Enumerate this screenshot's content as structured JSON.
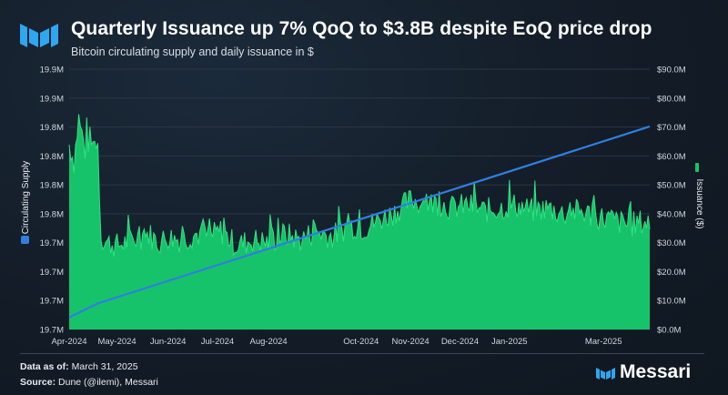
{
  "header": {
    "title": "Quarterly Issuance up 7% QoQ to $3.8B despite EoQ price drop",
    "subtitle": "Bitcoin circulating supply and daily issuance in $"
  },
  "footer": {
    "data_as_of_label": "Data as of:",
    "data_as_of_value": "March 31, 2025",
    "source_label": "Source:",
    "source_value": "Dune (@ilemi), Messari"
  },
  "brand": {
    "name": "Messari"
  },
  "colors": {
    "supply_line": "#2f7fe0",
    "issuance_fill": "#17c36a",
    "issuance_top": "#2fe383",
    "grid": "#2a3644",
    "axis_text": "#cfd6de"
  },
  "chart_data": {
    "type": "area+line",
    "title": "Quarterly Issuance up 7% QoQ to $3.8B despite EoQ price drop",
    "left_axis": {
      "label": "Circulating Supply",
      "tick_labels": [
        "19.7M",
        "19.7M",
        "19.7M",
        "19.7M",
        "19.8M",
        "19.8M",
        "19.8M",
        "19.8M",
        "19.9M",
        "19.9M"
      ],
      "range": [
        19.675,
        19.9
      ]
    },
    "right_axis": {
      "label": "Issuance ($)",
      "tick_labels": [
        "$0.0M",
        "$10.0M",
        "$20.0M",
        "$30.0M",
        "$40.0M",
        "$50.0M",
        "$60.0M",
        "$70.0M",
        "$80.0M",
        "$90.0M"
      ],
      "range": [
        0,
        90
      ]
    },
    "x_axis": {
      "tick_labels": [
        "Apr-2024",
        "May-2024",
        "Jun-2024",
        "Jul-2024",
        "Aug-2024",
        "Oct-2024",
        "Nov-2024",
        "Dec-2024",
        "Jan-2025",
        "Mar-2025"
      ],
      "tick_days": [
        0,
        30,
        62,
        93,
        125,
        183,
        214,
        245,
        276,
        335
      ],
      "range_days": [
        0,
        364
      ]
    },
    "series": [
      {
        "name": "Circulating Supply",
        "axis": "left",
        "style": "line",
        "days": [
          0,
          18,
          364
        ],
        "values": [
          19.6855,
          19.6975,
          19.8505
        ]
      },
      {
        "name": "Issuance ($)",
        "axis": "right",
        "style": "area",
        "days": [
          0,
          3,
          6,
          10,
          13,
          16,
          18,
          20,
          24,
          30,
          40,
          50,
          56,
          62,
          70,
          80,
          88,
          95,
          105,
          115,
          125,
          135,
          145,
          155,
          165,
          175,
          185,
          195,
          205,
          215,
          222,
          230,
          240,
          250,
          260,
          270,
          280,
          290,
          300,
          310,
          320,
          330,
          340,
          350,
          358,
          364
        ],
        "values": [
          64,
          58,
          73,
          62,
          66,
          62,
          64,
          32,
          30,
          29,
          31,
          33,
          30,
          32,
          31,
          33,
          32,
          34,
          29,
          31,
          30,
          33,
          31,
          34,
          32,
          36,
          35,
          38,
          41,
          45,
          43,
          44,
          42,
          43,
          41,
          42,
          43,
          41,
          42,
          40,
          41,
          39,
          38,
          36,
          37,
          37
        ]
      }
    ],
    "legend": "axis titles on left and right"
  }
}
